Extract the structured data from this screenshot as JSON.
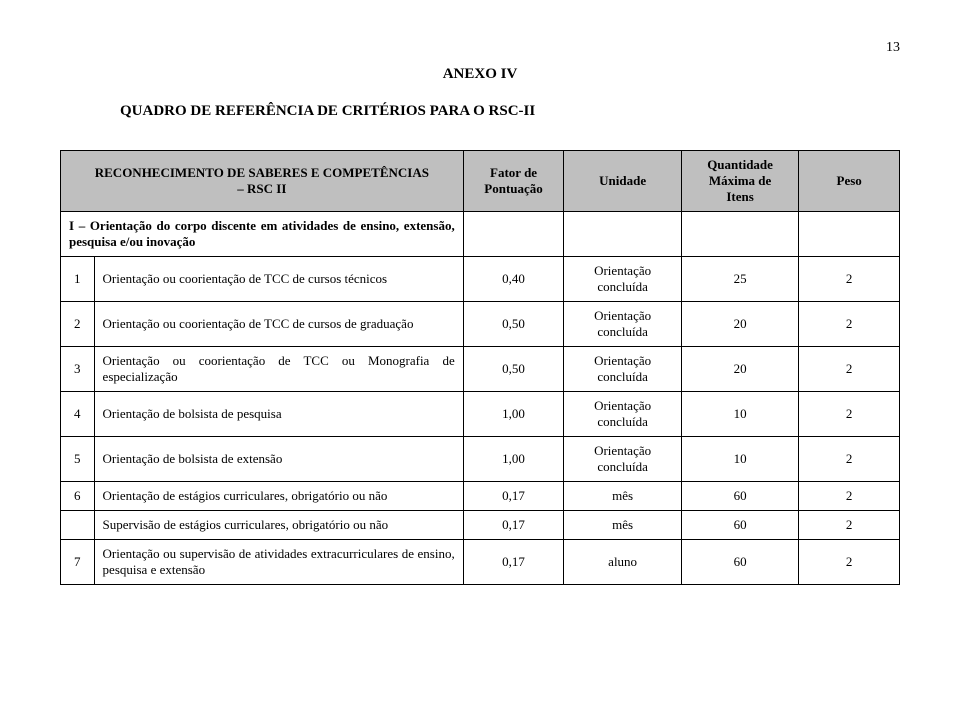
{
  "page_number": "13",
  "anexo_label": "ANEXO IV",
  "quadro_title": "QUADRO DE REFERÊNCIA DE CRITÉRIOS PARA O RSC-II",
  "headers": {
    "col1_line1": "RECONHECIMENTO DE SABERES E COMPETÊNCIAS",
    "col1_line2": "– RSC II",
    "col2_line1": "Fator de",
    "col2_line2": "Pontuação",
    "col3": "Unidade",
    "col4_line1": "Quantidade",
    "col4_line2": "Máxima de",
    "col4_line3": "Itens",
    "col5": "Peso"
  },
  "section_I_label": "I – Orientação do corpo discente em atividades de ensino, extensão, pesquisa e/ou inovação",
  "rows": [
    {
      "n": "1",
      "desc": "Orientação ou coorientação de TCC de cursos técnicos",
      "fator": "0,40",
      "unidade": "Orientação concluída",
      "qtd": "25",
      "peso": "2"
    },
    {
      "n": "2",
      "desc": "Orientação ou coorientação de TCC de cursos de graduação",
      "fator": "0,50",
      "unidade": "Orientação concluída",
      "qtd": "20",
      "peso": "2"
    },
    {
      "n": "3",
      "desc": "Orientação ou coorientação de TCC ou Monografia de especialização",
      "fator": "0,50",
      "unidade": "Orientação concluída",
      "qtd": "20",
      "peso": "2"
    },
    {
      "n": "4",
      "desc": "Orientação de bolsista de pesquisa",
      "fator": "1,00",
      "unidade": "Orientação concluída",
      "qtd": "10",
      "peso": "2"
    },
    {
      "n": "5",
      "desc": "Orientação de bolsista de extensão",
      "fator": "1,00",
      "unidade": "Orientação concluída",
      "qtd": "10",
      "peso": "2"
    },
    {
      "n": "6",
      "desc": "Orientação de estágios curriculares, obrigatório ou não",
      "fator": "0,17",
      "unidade": "mês",
      "qtd": "60",
      "peso": "2"
    },
    {
      "n": "",
      "desc": "Supervisão de estágios curriculares, obrigatório ou não",
      "fator": "0,17",
      "unidade": "mês",
      "qtd": "60",
      "peso": "2"
    },
    {
      "n": "7",
      "desc": "Orientação ou supervisão de atividades extracurriculares de ensino, pesquisa e extensão",
      "fator": "0,17",
      "unidade": "aluno",
      "qtd": "60",
      "peso": "2"
    }
  ]
}
